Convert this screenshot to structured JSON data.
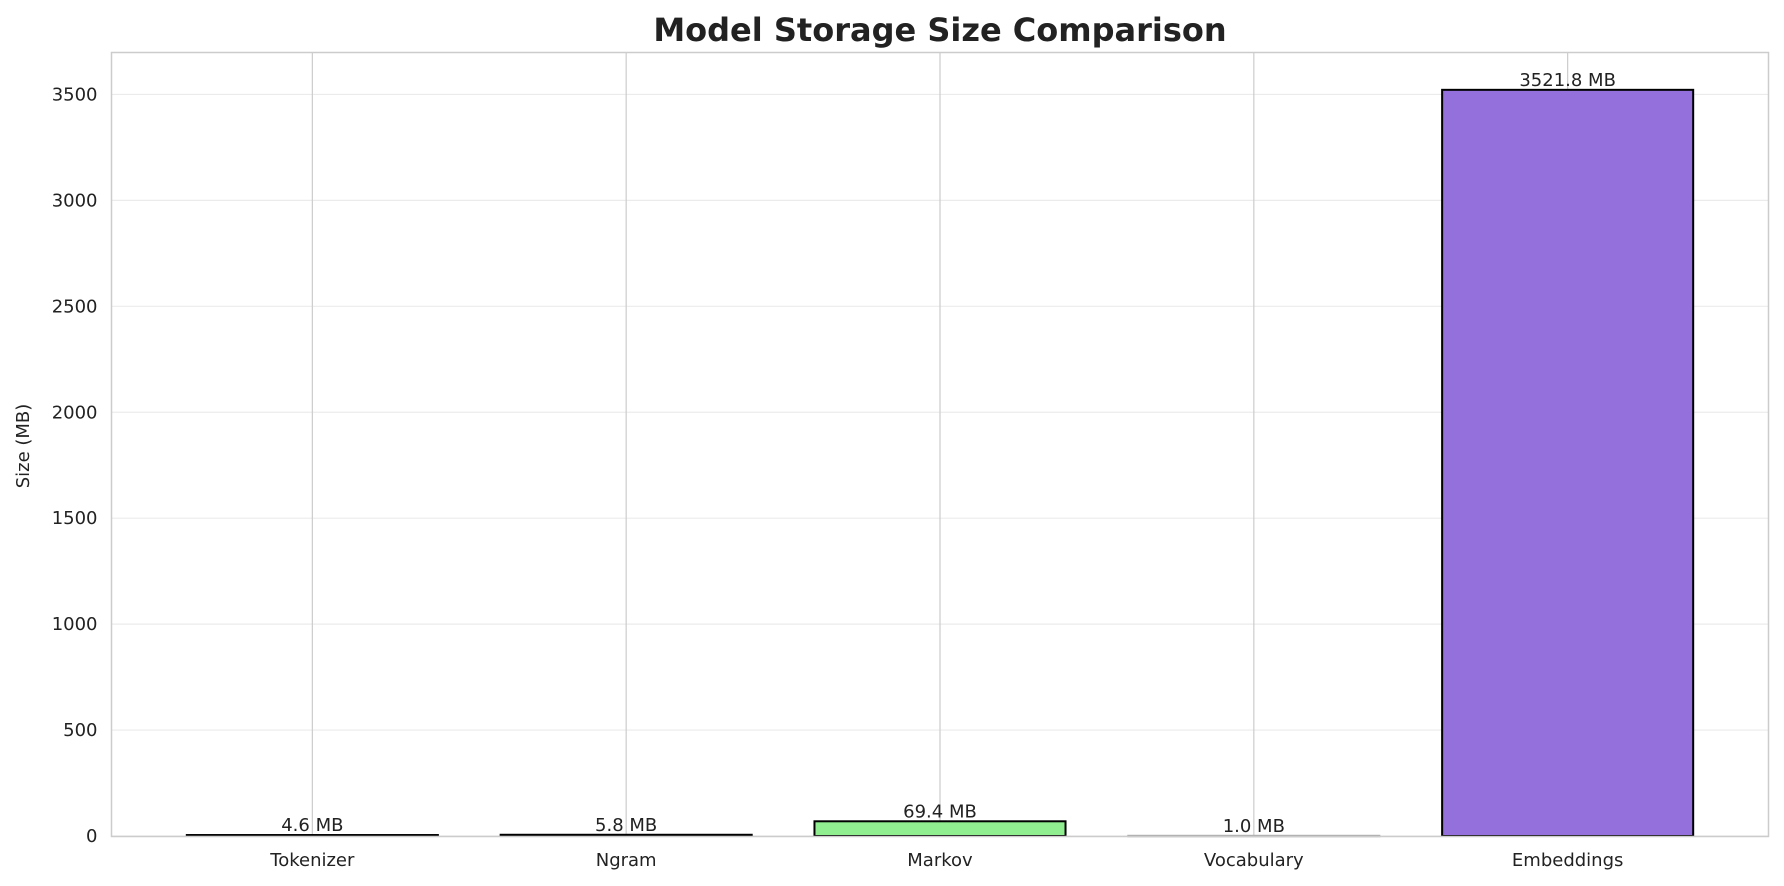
{
  "chart_data": {
    "type": "bar",
    "title": "Model Storage Size Comparison",
    "xlabel": "",
    "ylabel": "Size (MB)",
    "categories": [
      "Tokenizer",
      "Ngram",
      "Markov",
      "Vocabulary",
      "Embeddings"
    ],
    "values": [
      4.6,
      5.8,
      69.4,
      1.0,
      3521.8
    ],
    "data_labels": [
      "4.6 MB",
      "5.8 MB",
      "69.4 MB",
      "1.0 MB",
      "3521.8 MB"
    ],
    "colors": [
      "#87ceeb",
      "#f08080",
      "#90ee90",
      "#ffd700",
      "#9370db"
    ],
    "ylim": [
      0,
      3698
    ],
    "yticks": [
      0,
      500,
      1000,
      1500,
      2000,
      2500,
      3000,
      3500
    ],
    "grid": true,
    "legend": "none"
  }
}
